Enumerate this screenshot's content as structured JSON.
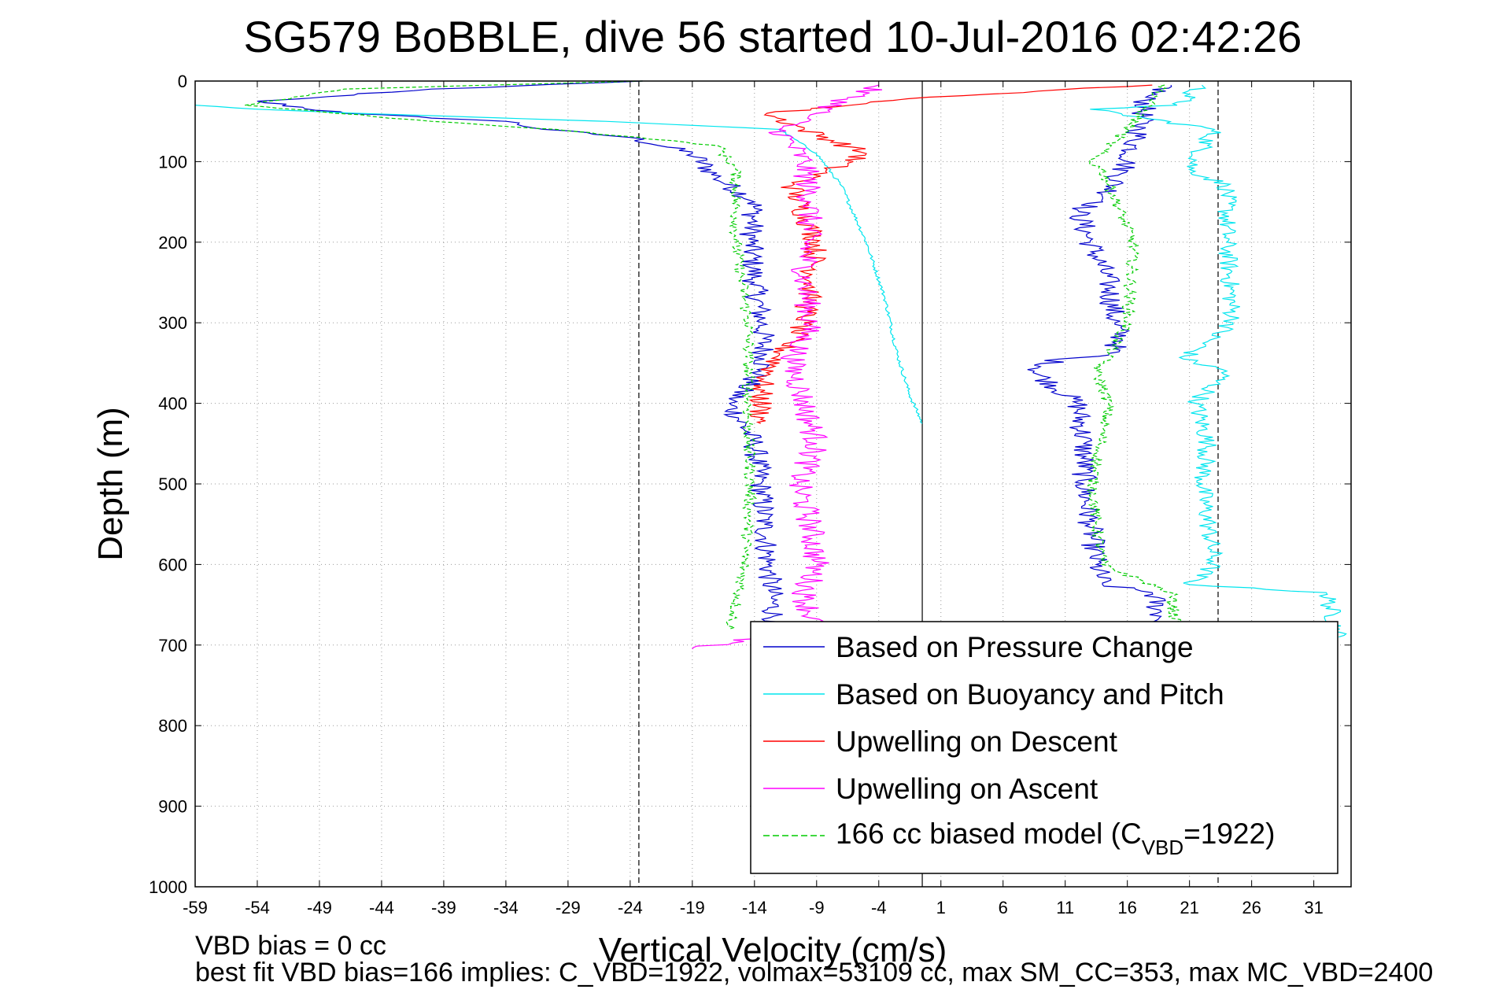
{
  "chart_data": {
    "type": "line",
    "title": "SG579 BoBBLE, dive 56 started 10-Jul-2016 02:42:26",
    "xlabel": "Vertical Velocity (cm/s)",
    "ylabel": "Depth (m)",
    "xlim": [
      -59,
      34
    ],
    "ylim": [
      0,
      1000
    ],
    "y_reversed": true,
    "grid": true,
    "xticks": [
      -59,
      -54,
      -49,
      -44,
      -39,
      -34,
      -29,
      -24,
      -19,
      -14,
      -9,
      -4,
      1,
      6,
      11,
      16,
      21,
      26,
      31
    ],
    "yticks": [
      0,
      100,
      200,
      300,
      400,
      500,
      600,
      700,
      800,
      900,
      1000
    ],
    "reference_lines": {
      "dashed_left": -23.3,
      "solid_center": -0.5,
      "dashed_right": 23.3
    },
    "legend_position": "lower-right",
    "legend": {
      "pressure_change": "Based on Pressure Change",
      "buoyancy_pitch": "Based on Buoyancy and Pitch",
      "upwelling_descent": "Upwelling on Descent",
      "upwelling_ascent": "Upwelling on Ascent",
      "biased_model_prefix": "166 cc biased model (C",
      "biased_model_sub": "VBD",
      "biased_model_suffix": "=1922)"
    },
    "colors": {
      "pressure": "#0000cc",
      "buoyancy": "#00e5ee",
      "descent": "#ff0000",
      "ascent": "#ff00ff",
      "model": "#00cc00"
    },
    "series": [
      {
        "name": "Based on Pressure Change",
        "key": "pressure_descent",
        "x": [
          -23,
          -40,
          -54,
          -47,
          -34,
          -31,
          -24,
          -19,
          -17,
          -14,
          -14.3,
          -14,
          -13.4,
          -13.2,
          -13.5,
          -16,
          -14,
          -13.5,
          -13.2,
          -12.9,
          -12.6,
          -12.3,
          -12.4
        ],
        "y": [
          0,
          10,
          25,
          40,
          50,
          60,
          70,
          90,
          120,
          150,
          200,
          250,
          300,
          345,
          360,
          400,
          450,
          500,
          550,
          600,
          640,
          680,
          690
        ]
      },
      {
        "name": "Based on Pressure Change",
        "key": "pressure_ascent",
        "x": [
          19.5,
          17.5,
          17,
          16,
          15.5,
          14,
          12,
          13,
          14.5,
          15,
          15.5,
          14.5,
          10.5,
          8.5,
          12,
          12.5,
          12.5,
          13,
          13.5,
          14,
          18,
          19
        ],
        "y": [
          5,
          20,
          60,
          100,
          115,
          150,
          160,
          200,
          250,
          300,
          320,
          340,
          345,
          360,
          400,
          450,
          500,
          550,
          600,
          625,
          635,
          680
        ]
      },
      {
        "name": "Based on Buoyancy and Pitch",
        "key": "buoyancy_descent",
        "x": [
          -59,
          -54,
          -46,
          -36,
          -26,
          -12,
          -9,
          -7,
          -5,
          -3.5,
          -2.5,
          -1.5,
          -0.5
        ],
        "y": [
          30,
          35,
          40,
          45,
          50,
          60,
          90,
          130,
          200,
          270,
          340,
          390,
          425
        ]
      },
      {
        "name": "Based on Buoyancy and Pitch",
        "key": "buoyancy_ascent",
        "x": [
          22,
          20,
          13,
          23,
          21,
          24,
          24,
          24.5,
          20.5,
          24,
          21.5,
          22.5,
          22,
          22.5,
          23,
          21,
          32,
          33
        ],
        "y": [
          5,
          30,
          35,
          60,
          110,
          130,
          200,
          300,
          345,
          360,
          400,
          450,
          500,
          550,
          600,
          625,
          635,
          690
        ]
      },
      {
        "name": "Upwelling on Descent",
        "key": "descent",
        "x": [
          18,
          0,
          -5,
          -13,
          -10,
          -5,
          -11,
          -9,
          -9.5,
          -10,
          -12,
          -13.5,
          -13.5,
          -13.5
        ],
        "y": [
          5,
          20,
          28,
          40,
          60,
          90,
          130,
          200,
          260,
          300,
          340,
          380,
          420,
          425
        ]
      },
      {
        "name": "Upwelling on Ascent",
        "key": "ascent",
        "x": [
          -4,
          -9,
          -12,
          -10,
          -9.5,
          -10,
          -9.5,
          -11,
          -10,
          -9,
          -10.5,
          -9.5,
          -9,
          -10,
          -9,
          -14,
          -19
        ],
        "y": [
          5,
          40,
          60,
          100,
          150,
          250,
          300,
          350,
          400,
          450,
          500,
          550,
          600,
          640,
          680,
          690,
          705
        ]
      },
      {
        "name": "166 cc biased model (CVBD=1922)",
        "key": "model_descent",
        "x": [
          -23,
          -47,
          -55,
          -40,
          -30,
          -17,
          -15.5,
          -15.5,
          -15,
          -14.5,
          -14.5,
          -14.5,
          -14.5,
          -14.3,
          -14.5,
          -15,
          -16
        ],
        "y": [
          0,
          10,
          30,
          50,
          60,
          80,
          110,
          200,
          250,
          300,
          350,
          400,
          450,
          500,
          550,
          620,
          680
        ]
      },
      {
        "name": "166 cc biased model (CVBD=1922)",
        "key": "model_ascent",
        "x": [
          19,
          16,
          13,
          14,
          16.5,
          16,
          14.5,
          13.5,
          14.5,
          13.8,
          13.2,
          13.5,
          14,
          19.5,
          20
        ],
        "y": [
          5,
          60,
          100,
          110,
          200,
          300,
          340,
          360,
          400,
          450,
          500,
          550,
          600,
          635,
          690
        ]
      }
    ]
  },
  "footer": {
    "vbd_bias": "VBD bias = 0 cc",
    "best_fit": "best fit VBD bias=166 implies: C_VBD=1922, volmax=53109 cc, max SM_CC=353, max MC_VBD=2400"
  }
}
